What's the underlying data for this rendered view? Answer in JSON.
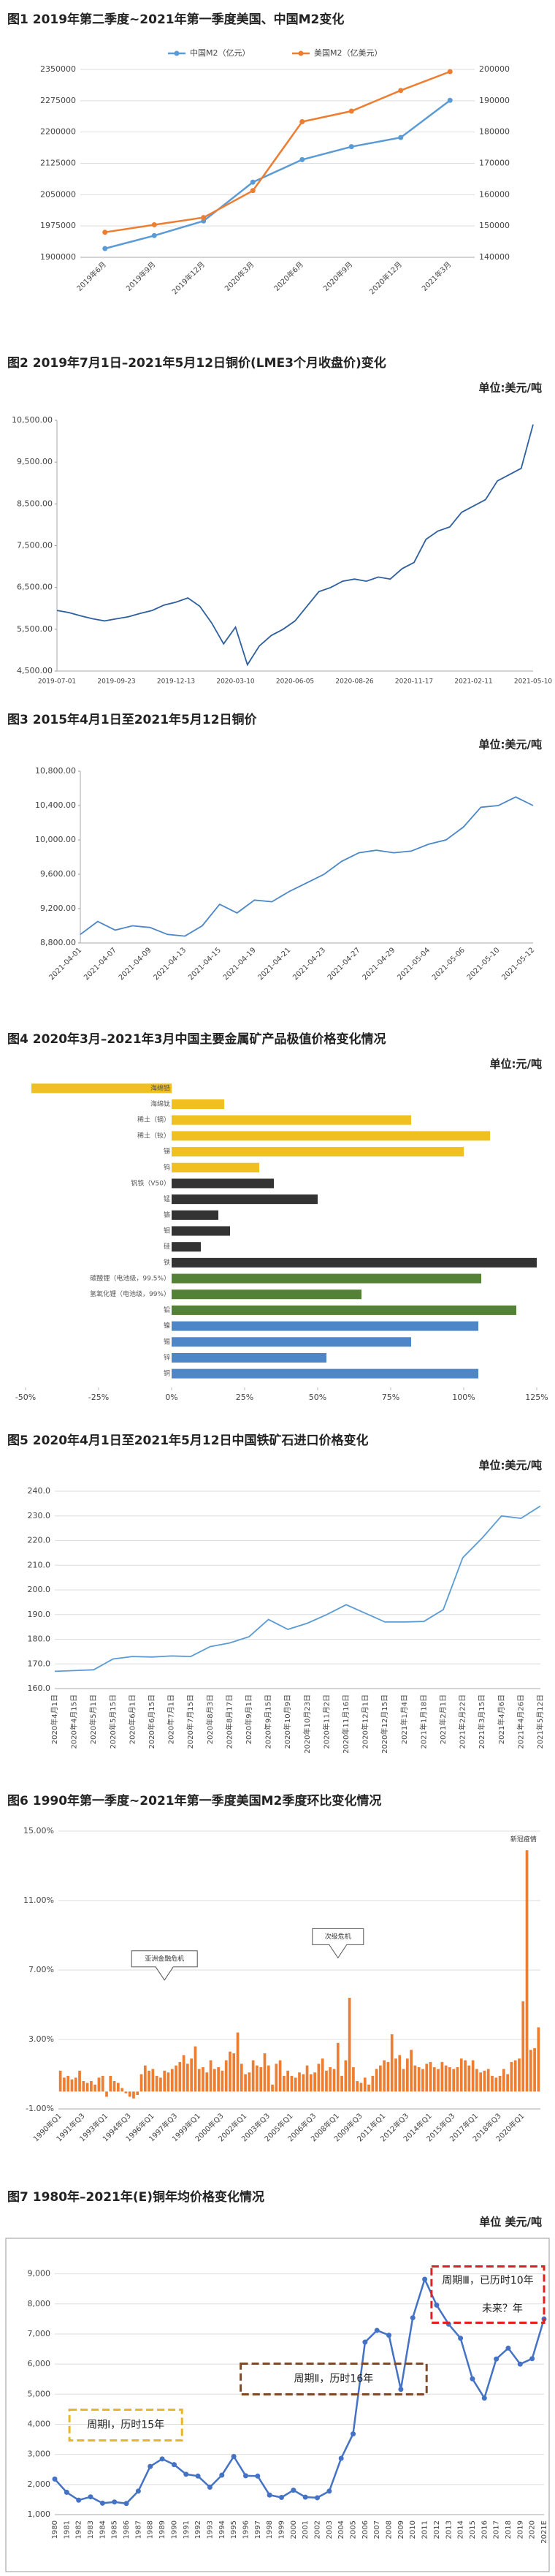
{
  "chart_data": [
    {
      "type": "line",
      "title": "图1  2019年第二季度~2021年第一季度美国、中国M2变化",
      "categories": [
        "2019年6月",
        "2019年9月",
        "2019年12月",
        "2020年3月",
        "2020年6月",
        "2020年9月",
        "2020年12月",
        "2021年3月"
      ],
      "series": [
        {
          "name": "中国M2（亿元）",
          "color": "#5b9bd5",
          "values": [
            1921000,
            1952000,
            1987000,
            2080000,
            2134000,
            2165000,
            2187000,
            2276000
          ]
        },
        {
          "name": "美国M2（亿美元）",
          "color": "#ed7d31",
          "axis": "y2",
          "values": [
            148000,
            150400,
            152700,
            161300,
            183300,
            186700,
            193300,
            199300
          ]
        }
      ],
      "ylim": [
        1900000,
        2350000
      ],
      "yticks": [
        1900000,
        1975000,
        2050000,
        2125000,
        2200000,
        2275000,
        2350000
      ],
      "y2lim": [
        140000,
        200000
      ],
      "y2ticks": [
        140000,
        150000,
        160000,
        170000,
        180000,
        190000,
        200000
      ],
      "grid": true,
      "legend": "top",
      "markers": true
    },
    {
      "type": "line",
      "title": "图2  2019年7月1日–2021年5月12日铜价(LME3个月收盘价)变化",
      "unit": "单位:美元/吨",
      "categories": [
        "2019-07-01",
        null,
        null,
        null,
        null,
        "2019-09-23",
        null,
        null,
        null,
        null,
        "2019-12-13",
        null,
        null,
        null,
        null,
        "2020-03-10",
        null,
        null,
        null,
        null,
        "2020-06-05",
        null,
        null,
        null,
        null,
        "2020-08-26",
        null,
        null,
        null,
        null,
        "2020-11-17",
        null,
        null,
        null,
        null,
        "2021-02-11",
        null,
        null,
        null,
        null,
        "2021-05-10"
      ],
      "series": [
        {
          "name": "LME3",
          "color": "#2e5f9e",
          "values": [
            5950,
            5900,
            5820,
            5750,
            5700,
            5750,
            5800,
            5880,
            5950,
            6080,
            6150,
            6250,
            6050,
            5650,
            5150,
            5550,
            4650,
            5100,
            5350,
            5500,
            5700,
            6050,
            6400,
            6500,
            6650,
            6700,
            6650,
            6750,
            6700,
            6950,
            7100,
            7650,
            7850,
            7950,
            8300,
            8450,
            8600,
            9050,
            9200,
            9350,
            10400
          ]
        }
      ],
      "ylim": [
        4500,
        10500
      ],
      "yticks": [
        {
          "value": 4500,
          "label": "4,500.00"
        },
        {
          "value": 5500,
          "label": "5,500.00"
        },
        {
          "value": 6500,
          "label": "6,500.00"
        },
        {
          "value": 7500,
          "label": "7,500.00"
        },
        {
          "value": 8500,
          "label": "8,500.00"
        },
        {
          "value": 9500,
          "label": "9,500.00"
        },
        {
          "value": 10500,
          "label": "10,500.00"
        }
      ],
      "grid": false,
      "markers": false
    },
    {
      "type": "line",
      "title": "图3  2015年4月1日至2021年5月12日铜价",
      "unit": "单位:美元/吨",
      "categories": [
        "2021-04-01",
        null,
        "2021-04-07",
        null,
        "2021-04-09",
        null,
        "2021-04-13",
        null,
        "2021-04-15",
        null,
        "2021-04-19",
        null,
        "2021-04-21",
        null,
        "2021-04-23",
        null,
        "2021-04-27",
        null,
        "2021-04-29",
        null,
        "2021-05-04",
        null,
        "2021-05-06",
        null,
        "2021-05-10",
        null,
        "2021-05-12"
      ],
      "series": [
        {
          "name": "铜价",
          "color": "#4a86c8",
          "values": [
            8900,
            9050,
            8950,
            9000,
            8980,
            8900,
            8880,
            9000,
            9250,
            9150,
            9300,
            9280,
            9400,
            9500,
            9600,
            9750,
            9850,
            9880,
            9850,
            9870,
            9950,
            10000,
            10150,
            10380,
            10400,
            10500,
            10400
          ]
        }
      ],
      "ylim": [
        8800,
        10800
      ],
      "yticks": [
        {
          "value": 8800,
          "label": "8,800.00"
        },
        {
          "value": 9200,
          "label": "9,200.00"
        },
        {
          "value": 9600,
          "label": "9,600.00"
        },
        {
          "value": 10000,
          "label": "10,000.00"
        },
        {
          "value": 10400,
          "label": "10,400.00"
        },
        {
          "value": 10800,
          "label": "10,800.00"
        }
      ],
      "grid": false,
      "markers": false
    },
    {
      "type": "barh",
      "title": "图4  2020年3月–2021年3月中国主要金属矿产品极值价格变化情况",
      "unit": "单位:元/吨",
      "categories": [
        "海绵锆",
        "海绵钛",
        "稀土（镝）",
        "稀土（钕）",
        "锑",
        "钨",
        "钒铁（V50）",
        "锰",
        "铬",
        "钼",
        "硅",
        "铁",
        "碳酸锂（电池级，99.5%）",
        "氢氧化锂（电池级，99%）",
        "铅",
        "镍",
        "锡",
        "锌",
        "铜"
      ],
      "values": [
        -48,
        18,
        82,
        109,
        100,
        30,
        35,
        50,
        16,
        20,
        10,
        125,
        106,
        65,
        118,
        105,
        82,
        53,
        105
      ],
      "colors": [
        "#f0c020",
        "#f0c020",
        "#f0c020",
        "#f0c020",
        "#f0c020",
        "#f0c020",
        "#333333",
        "#333333",
        "#333333",
        "#333333",
        "#333333",
        "#333333",
        "#538135",
        "#538135",
        "#538135",
        "#4e87c7",
        "#4e87c7",
        "#4e87c7",
        "#4e87c7"
      ],
      "xlim": [
        -50,
        125
      ],
      "xticks": [
        {
          "value": -50,
          "label": "-50%"
        },
        {
          "value": -25,
          "label": "-25%"
        },
        {
          "value": 0,
          "label": "0%"
        },
        {
          "value": 25,
          "label": "25%"
        },
        {
          "value": 50,
          "label": "50%"
        },
        {
          "value": 75,
          "label": "75%"
        },
        {
          "value": 100,
          "label": "100%"
        },
        {
          "value": 125,
          "label": "125%"
        }
      ],
      "grid": false
    },
    {
      "type": "line",
      "title": "图5  2020年4月1日至2021年5月12日中国铁矿石进口价格变化",
      "unit": "单位:美元/吨",
      "categories": [
        "2020年4月1日",
        "2020年4月15日",
        "2020年5月1日",
        "2020年5月15日",
        "2020年6月1日",
        "2020年6月15日",
        "2020年7月1日",
        "2020年7月15日",
        "2020年8月3日",
        "2020年8月17日",
        "2020年9月1日",
        "2020年9月15日",
        "2020年10月9日",
        "2020年10月23日",
        "2020年11月2日",
        "2020年11月16日",
        "2020年12月1日",
        "2020年12月15日",
        "2021年1月4日",
        "2021年1月18日",
        "2021年2月1日",
        "2021年2月22日",
        "2021年3月15日",
        "2021年4月6日",
        "2021年4月26日",
        "2021年5月12日"
      ],
      "series": [
        {
          "name": "铁矿石",
          "color": "#5b9bd5",
          "values": [
            167,
            167.3,
            167.6,
            172,
            173,
            172.8,
            173.2,
            173,
            177,
            178.5,
            181,
            188,
            184,
            186.5,
            190,
            194,
            190.5,
            187,
            187,
            187.2,
            192,
            213,
            221,
            230,
            229,
            234
          ]
        }
      ],
      "ylim": [
        160,
        240
      ],
      "yticks": [
        {
          "value": 160,
          "label": "160.0"
        },
        {
          "value": 170,
          "label": "170.0"
        },
        {
          "value": 180,
          "label": "180.0"
        },
        {
          "value": 190,
          "label": "190.0"
        },
        {
          "value": 200,
          "label": "200.0"
        },
        {
          "value": 210,
          "label": "210.0"
        },
        {
          "value": 220,
          "label": "220.0"
        },
        {
          "value": 230,
          "label": "230.0"
        },
        {
          "value": 240,
          "label": "240.0"
        }
      ],
      "grid": true,
      "markers": false
    },
    {
      "type": "bar",
      "title": "图6  1990年第一季度~2021年第一季度美国M2季度环比变化情况",
      "categories": [
        "1990年Q1",
        null,
        null,
        null,
        null,
        null,
        "1991年Q3",
        null,
        null,
        null,
        null,
        null,
        "1993年Q1",
        null,
        null,
        null,
        null,
        null,
        "1994年Q3",
        null,
        null,
        null,
        null,
        null,
        "1996年Q1",
        null,
        null,
        null,
        null,
        null,
        "1997年Q3",
        null,
        null,
        null,
        null,
        null,
        "1999年Q1",
        null,
        null,
        null,
        null,
        null,
        "2000年Q3",
        null,
        null,
        null,
        null,
        null,
        "2002年Q1",
        null,
        null,
        null,
        null,
        null,
        "2003年Q3",
        null,
        null,
        null,
        null,
        null,
        "2005年Q1",
        null,
        null,
        null,
        null,
        null,
        "2006年Q3",
        null,
        null,
        null,
        null,
        null,
        "2008年Q1",
        null,
        null,
        null,
        null,
        null,
        "2009年Q3",
        null,
        null,
        null,
        null,
        null,
        "2011年Q1",
        null,
        null,
        null,
        null,
        null,
        "2012年Q3",
        null,
        null,
        null,
        null,
        null,
        "2014年Q1",
        null,
        null,
        null,
        null,
        null,
        "2015年Q3",
        null,
        null,
        null,
        null,
        null,
        "2017年Q1",
        null,
        null,
        null,
        null,
        null,
        "2018年Q3",
        null,
        null,
        null,
        null,
        null,
        "2020年Q1",
        null,
        null,
        null,
        null
      ],
      "values": [
        1.2,
        0.8,
        0.9,
        0.7,
        0.8,
        1.2,
        0.6,
        0.5,
        0.6,
        0.4,
        0.8,
        0.9,
        -0.3,
        0.9,
        0.6,
        0.5,
        0.2,
        -0.1,
        -0.3,
        -0.4,
        -0.2,
        1.0,
        1.5,
        1.2,
        1.3,
        0.9,
        0.8,
        1.2,
        1.1,
        1.3,
        1.5,
        1.7,
        2.1,
        1.6,
        1.9,
        2.6,
        1.3,
        1.4,
        1.1,
        1.8,
        1.3,
        1.4,
        1.2,
        1.8,
        2.3,
        2.2,
        3.4,
        1.6,
        1.0,
        1.1,
        1.8,
        1.5,
        1.4,
        2.2,
        1.5,
        0.4,
        1.6,
        1.8,
        0.9,
        1.2,
        0.9,
        0.8,
        1.1,
        1.0,
        1.5,
        1.0,
        1.1,
        1.6,
        1.9,
        1.2,
        1.4,
        1.3,
        2.8,
        0.9,
        1.8,
        5.4,
        1.4,
        0.6,
        0.5,
        0.8,
        0.4,
        0.9,
        1.3,
        1.5,
        1.8,
        1.7,
        3.3,
        1.9,
        2.1,
        1.3,
        1.9,
        2.4,
        1.5,
        1.4,
        1.3,
        1.6,
        1.7,
        1.4,
        1.3,
        1.7,
        1.5,
        1.4,
        1.3,
        1.4,
        1.9,
        1.8,
        1.5,
        1.8,
        1.3,
        1.1,
        1.2,
        1.3,
        0.9,
        0.8,
        0.9,
        1.3,
        1.0,
        1.7,
        1.8,
        1.9,
        5.2,
        13.9,
        2.4,
        2.5,
        3.7
      ],
      "color": "#ed7d31",
      "ylim": [
        -1,
        15
      ],
      "yticks": [
        {
          "value": -1,
          "label": "-1.00%"
        },
        {
          "value": 3,
          "label": "3.00%"
        },
        {
          "value": 7,
          "label": "7.00%"
        },
        {
          "value": 11,
          "label": "11.00%"
        },
        {
          "value": 15,
          "label": "15.00%"
        }
      ],
      "grid": true,
      "annotations": [
        "亚洲金融危机",
        "次级危机",
        "新冠疫情"
      ]
    },
    {
      "type": "line",
      "title": "图7  1980年–2021年(E)铜年均价格变化情况",
      "unit": "单位  美元/吨",
      "categories": [
        "1980",
        "1981",
        "1982",
        "1983",
        "1984",
        "1985",
        "1986",
        "1987",
        "1988",
        "1989",
        "1990",
        "1991",
        "1992",
        "1993",
        "1994",
        "1995",
        "1996",
        "1997",
        "1998",
        "1999",
        "2000",
        "2001",
        "2002",
        "2003",
        "2004",
        "2005",
        "2006",
        "2007",
        "2008",
        "2009",
        "2010",
        "2011",
        "2012",
        "2013",
        "2014",
        "2015",
        "2016",
        "2017",
        "2018",
        "2019",
        "2020",
        "2021E"
      ],
      "series": [
        {
          "name": "铜年均价",
          "color": "#4472c4",
          "values": [
            2180,
            1740,
            1480,
            1590,
            1380,
            1420,
            1370,
            1780,
            2600,
            2850,
            2660,
            2340,
            2280,
            1910,
            2310,
            2930,
            2290,
            2280,
            1650,
            1570,
            1810,
            1580,
            1560,
            1780,
            2870,
            3680,
            6730,
            7120,
            6960,
            5160,
            7540,
            8820,
            7960,
            7330,
            6860,
            5510,
            4870,
            6170,
            6530,
            6000,
            6180,
            7500
          ]
        }
      ],
      "ylim": [
        1000,
        9500
      ],
      "yticks": [
        {
          "value": 1000,
          "label": "1,000"
        },
        {
          "value": 2000,
          "label": "2,000"
        },
        {
          "value": 3000,
          "label": "3,000"
        },
        {
          "value": 4000,
          "label": "4,000"
        },
        {
          "value": 5000,
          "label": "5,000"
        },
        {
          "value": 6000,
          "label": "6,000"
        },
        {
          "value": 7000,
          "label": "7,000"
        },
        {
          "value": 8000,
          "label": "8,000"
        },
        {
          "value": 9000,
          "label": "9,000"
        }
      ],
      "grid": true,
      "markers": true,
      "annotations": [
        "周期Ⅰ，历时15年",
        "周期Ⅱ，历时16年",
        "周期Ⅲ，已历时10年",
        "未来？年"
      ]
    }
  ]
}
